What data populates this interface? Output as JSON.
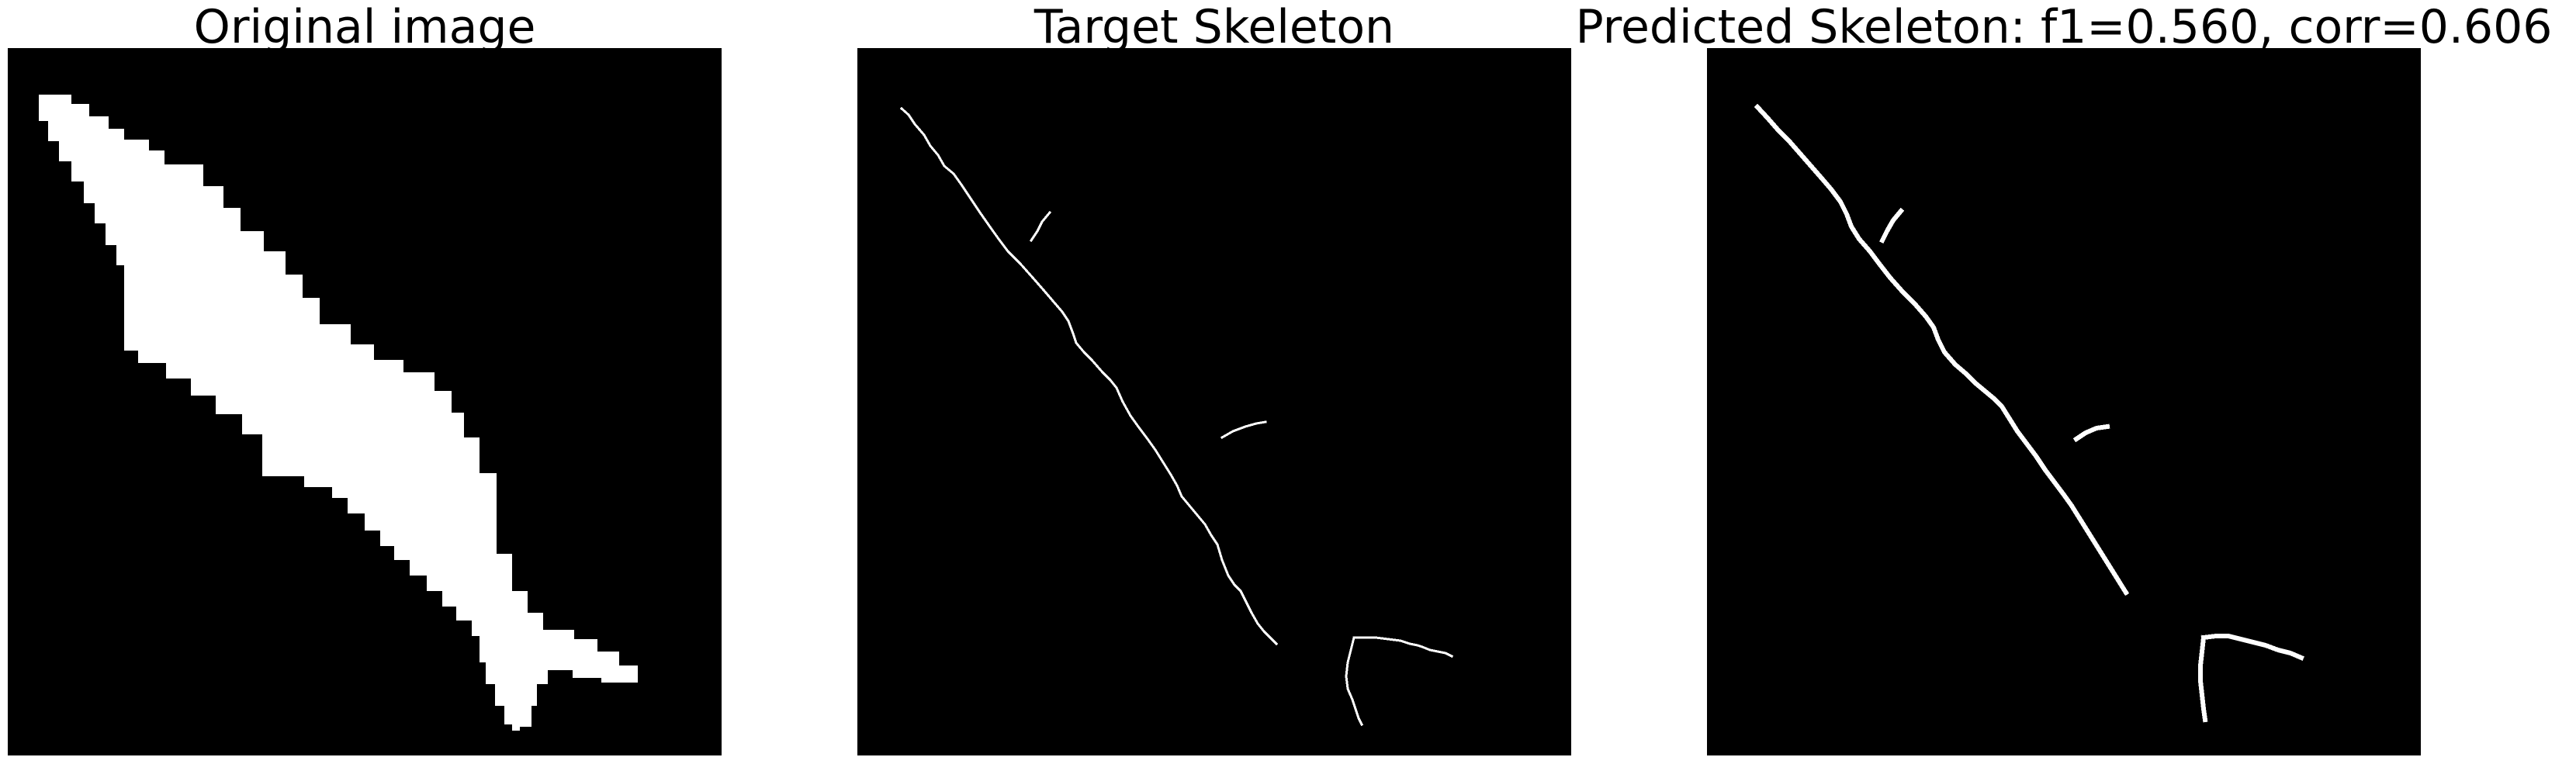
{
  "panels": [
    {
      "title": "Original image"
    },
    {
      "title": "Target Skeleton"
    },
    {
      "title": "Predicted Skeleton: f1=0.560, corr=0.606"
    }
  ],
  "colors": {
    "background": "#000000",
    "foreground": "#ffffff",
    "page": "#ffffff"
  }
}
